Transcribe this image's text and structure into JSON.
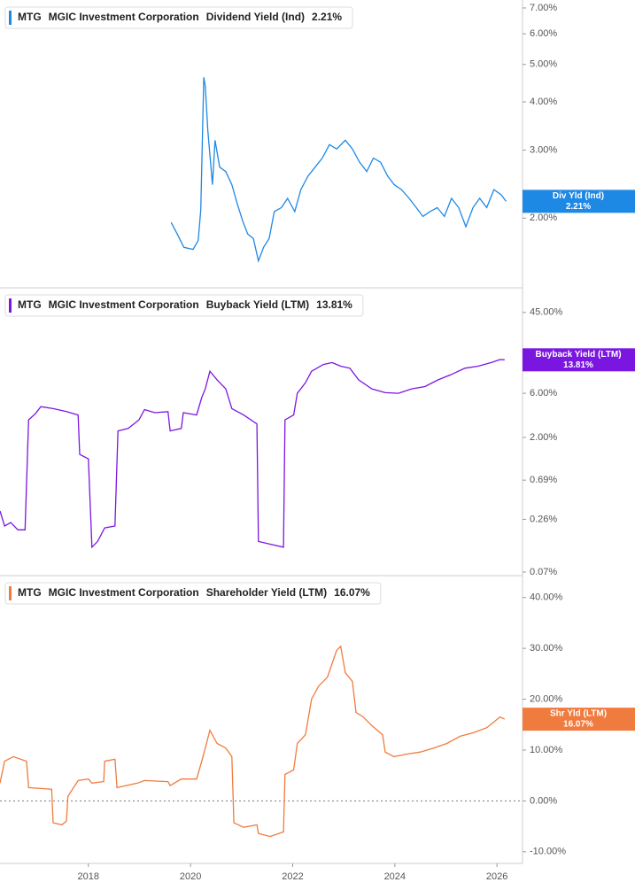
{
  "chart_data": [
    {
      "type": "line",
      "ticker": "MTG",
      "company": "MGIC Investment Corporation",
      "value_label": "2.21%",
      "badge_label": "Div Yld (Ind)",
      "log_y": true,
      "xlim": [
        2016.27,
        2026.5
      ],
      "ylim": [
        1.32,
        7.34
      ],
      "yticks": [
        {
          "value": 2,
          "label": "2.00%"
        },
        {
          "value": 3,
          "label": "3.00%"
        },
        {
          "value": 4,
          "label": "4.00%"
        },
        {
          "value": 5,
          "label": "5.00%"
        },
        {
          "value": 6,
          "label": "6.00%"
        },
        {
          "value": 7,
          "label": "7.00%"
        }
      ],
      "x": [
        2019.62,
        2019.74,
        2019.87,
        2020.05,
        2020.15,
        2020.2,
        2020.26,
        2020.29,
        2020.34,
        2020.43,
        2020.48,
        2020.57,
        2020.69,
        2020.81,
        2020.91,
        2021.02,
        2021.12,
        2021.23,
        2021.33,
        2021.43,
        2021.54,
        2021.64,
        2021.78,
        2021.9,
        2022.04,
        2022.16,
        2022.3,
        2022.44,
        2022.58,
        2022.72,
        2022.86,
        2023.03,
        2023.17,
        2023.31,
        2023.45,
        2023.58,
        2023.72,
        2023.86,
        2023.99,
        2024.13,
        2024.28,
        2024.42,
        2024.55,
        2024.69,
        2024.83,
        2024.97,
        2025.11,
        2025.25,
        2025.39,
        2025.53,
        2025.66,
        2025.8,
        2025.94,
        2026.08,
        2026.18
      ],
      "series": [
        {
          "name": "Dividend Yield (Ind)",
          "color": "#1e88e5",
          "values": [
            1.95,
            1.82,
            1.68,
            1.66,
            1.75,
            2.1,
            4.63,
            4.39,
            3.36,
            2.44,
            3.18,
            2.71,
            2.64,
            2.44,
            2.19,
            1.97,
            1.82,
            1.77,
            1.55,
            1.68,
            1.77,
            2.08,
            2.13,
            2.25,
            2.08,
            2.37,
            2.57,
            2.71,
            2.86,
            3.1,
            3.02,
            3.18,
            3.02,
            2.79,
            2.64,
            2.86,
            2.79,
            2.57,
            2.44,
            2.37,
            2.25,
            2.13,
            2.02,
            2.08,
            2.13,
            2.02,
            2.25,
            2.13,
            1.9,
            2.13,
            2.25,
            2.13,
            2.37,
            2.3,
            2.21
          ]
        }
      ]
    },
    {
      "type": "line",
      "ticker": "MTG",
      "company": "MGIC Investment Corporation",
      "value_label": "13.81%",
      "badge_label": "Buyback Yield (LTM)",
      "log_y": true,
      "xlim": [
        2016.27,
        2026.5
      ],
      "ylim": [
        0.064,
        83
      ],
      "yticks": [
        {
          "value": 0.07,
          "label": "0.07%"
        },
        {
          "value": 0.26,
          "label": "0.26%"
        },
        {
          "value": 0.69,
          "label": "0.69%"
        },
        {
          "value": 2,
          "label": "2.00%"
        },
        {
          "value": 6,
          "label": "6.00%"
        },
        {
          "value": 45,
          "label": "45.00%"
        }
      ],
      "x": [
        2016.27,
        2016.36,
        2016.48,
        2016.62,
        2016.76,
        2016.83,
        2016.96,
        2017.07,
        2017.31,
        2017.57,
        2017.8,
        2017.83,
        2018.0,
        2018.07,
        2018.18,
        2018.32,
        2018.52,
        2018.58,
        2018.78,
        2018.99,
        2019.1,
        2019.3,
        2019.56,
        2019.6,
        2019.82,
        2019.86,
        2020.12,
        2020.22,
        2020.29,
        2020.38,
        2020.52,
        2020.69,
        2020.81,
        2021.04,
        2021.3,
        2021.33,
        2021.56,
        2021.82,
        2021.85,
        2022.02,
        2022.09,
        2022.25,
        2022.37,
        2022.6,
        2022.77,
        2022.94,
        2023.12,
        2023.29,
        2023.55,
        2023.81,
        2024.07,
        2024.33,
        2024.59,
        2024.85,
        2025.11,
        2025.37,
        2025.63,
        2025.89,
        2026.06,
        2026.15
      ],
      "series": [
        {
          "name": "Buyback Yield (LTM)",
          "color": "#7b16e0",
          "values": [
            0.32,
            0.22,
            0.24,
            0.2,
            0.2,
            3.1,
            3.6,
            4.3,
            4.1,
            3.8,
            3.5,
            1.31,
            1.17,
            0.13,
            0.15,
            0.21,
            0.22,
            2.35,
            2.5,
            3.1,
            4.0,
            3.7,
            3.8,
            2.35,
            2.5,
            3.7,
            3.5,
            5.4,
            6.7,
            10.4,
            8.4,
            6.7,
            4.1,
            3.5,
            2.8,
            0.15,
            0.14,
            0.13,
            3.1,
            3.5,
            6.0,
            7.8,
            10.4,
            12.3,
            12.9,
            11.8,
            11.2,
            8.4,
            6.7,
            6.1,
            6.0,
            6.7,
            7.1,
            8.4,
            9.6,
            11.2,
            11.8,
            12.9,
            13.9,
            13.81
          ]
        }
      ]
    },
    {
      "type": "line",
      "ticker": "MTG",
      "company": "MGIC Investment Corporation",
      "value_label": "16.07%",
      "badge_label": "Shr Yld (LTM)",
      "log_y": false,
      "zero_line": true,
      "xlim": [
        2016.27,
        2026.5
      ],
      "ylim": [
        -12.3,
        44.3
      ],
      "yticks": [
        {
          "value": -10,
          "label": "-10.00%"
        },
        {
          "value": 0,
          "label": "0.00%"
        },
        {
          "value": 10,
          "label": "10.00%"
        },
        {
          "value": 20,
          "label": "20.00%"
        },
        {
          "value": 30,
          "label": "30.00%"
        },
        {
          "value": 40,
          "label": "40.00%"
        }
      ],
      "xticks": [
        2018,
        2020,
        2022,
        2024,
        2026
      ],
      "x": [
        2016.27,
        2016.36,
        2016.53,
        2016.79,
        2016.83,
        2017.28,
        2017.31,
        2017.48,
        2017.57,
        2017.6,
        2017.8,
        2018.0,
        2018.07,
        2018.3,
        2018.32,
        2018.52,
        2018.56,
        2018.96,
        2019.1,
        2019.56,
        2019.6,
        2019.82,
        2020.12,
        2020.22,
        2020.29,
        2020.38,
        2020.52,
        2020.69,
        2020.81,
        2020.85,
        2021.04,
        2021.3,
        2021.33,
        2021.56,
        2021.82,
        2021.85,
        2022.02,
        2022.09,
        2022.25,
        2022.37,
        2022.51,
        2022.68,
        2022.86,
        2022.94,
        2023.03,
        2023.17,
        2023.24,
        2023.38,
        2023.55,
        2023.76,
        2023.81,
        2023.98,
        2024.24,
        2024.5,
        2024.76,
        2025.02,
        2025.28,
        2025.54,
        2025.8,
        2026.06,
        2026.15
      ],
      "series": [
        {
          "name": "Shareholder Yield (LTM)",
          "color": "#f07b3f",
          "values": [
            3.5,
            7.8,
            8.7,
            7.8,
            2.6,
            2.3,
            -4.3,
            -4.7,
            -4.0,
            0.9,
            4.0,
            4.3,
            3.5,
            3.8,
            7.8,
            8.2,
            2.6,
            3.5,
            4.0,
            3.8,
            3.0,
            4.3,
            4.3,
            7.8,
            10.4,
            13.9,
            11.3,
            10.4,
            8.7,
            -4.3,
            -5.2,
            -4.7,
            -6.4,
            -7.0,
            -6.1,
            5.2,
            6.1,
            11.3,
            13.0,
            20.0,
            22.6,
            24.3,
            29.6,
            30.4,
            25.2,
            23.5,
            17.4,
            16.5,
            14.8,
            13.0,
            9.6,
            8.7,
            9.2,
            9.6,
            10.4,
            11.3,
            12.7,
            13.4,
            14.4,
            16.5,
            16.07
          ]
        }
      ]
    }
  ]
}
